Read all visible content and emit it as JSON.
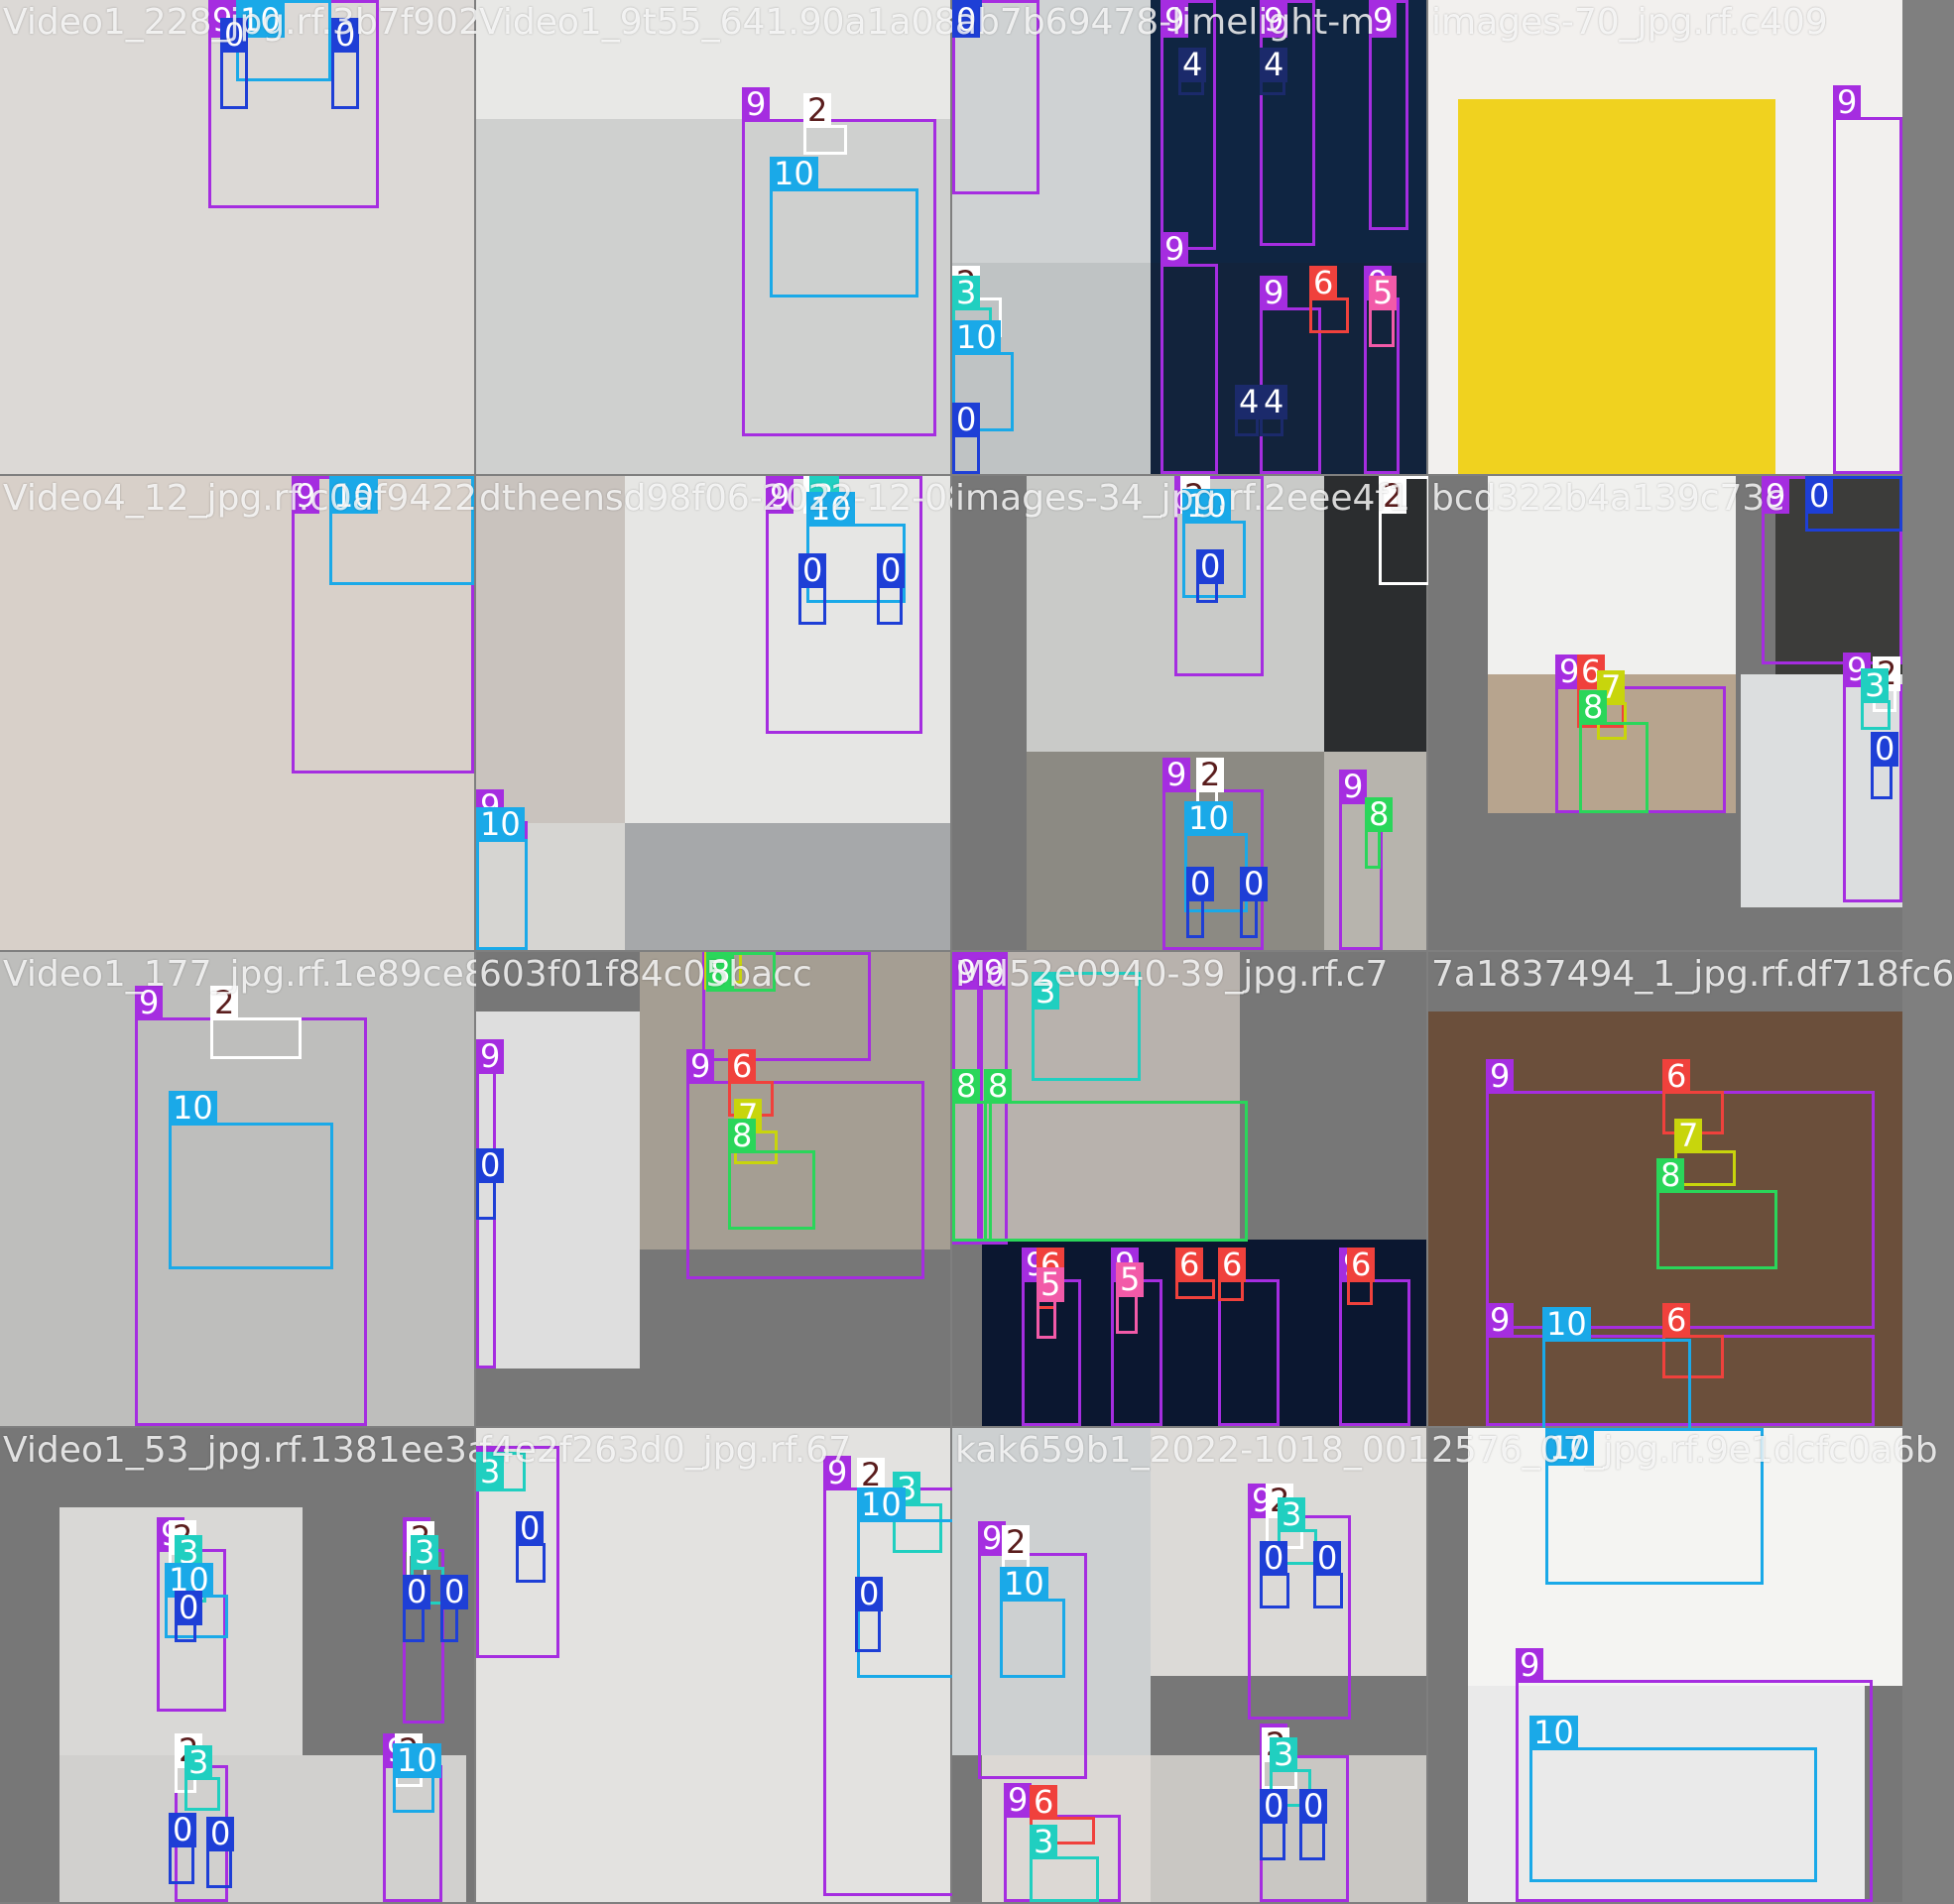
{
  "tiles": [
    {
      "filename": "Video1_228_jpg.rf.3b7f902d"
    },
    {
      "filename": "Video1_9t55_641.90a1a08"
    },
    {
      "filename": "ab7b69478-limelight-m"
    },
    {
      "filename": "images-70_jpg.rf.c409"
    },
    {
      "filename": "Video4_12_jpg.rf.c0af94222"
    },
    {
      "filename": "dtheensd98f06-2022-12-08"
    },
    {
      "filename": "images-34_jpg.rf.2eee4f1"
    },
    {
      "filename": "bcd322b4a139c73c"
    },
    {
      "filename": "Video1_177_jpg.rf.1e89ce8a"
    },
    {
      "filename": "603f01f84c05bacc"
    },
    {
      "filename": "Md52e0940-39_jpg.rf.c7"
    },
    {
      "filename": "7a1837494_1_jpg.rf.df718fc6"
    },
    {
      "filename": "Video1_53_jpg.rf.1381ee3a8"
    },
    {
      "filename": "f4e2f263d0_jpg.rf.67"
    },
    {
      "filename": "kak659b1_2022-1018_0014"
    },
    {
      "filename": "2576_07_jpg.rf.9e1dcfc0a6b"
    }
  ],
  "class_colors": {
    "0": "#1e3fd6",
    "2": "#ffffff",
    "3": "#20cfc0",
    "4": "#1b2a6b",
    "5": "#f25aa8",
    "6": "#f0413c",
    "7": "#c8d50c",
    "8": "#2ad65a",
    "9": "#a52de0",
    "10": "#1aa9e8"
  },
  "detections": [
    {
      "tile": 0,
      "cls": "9"
    },
    {
      "tile": 0,
      "cls": "10"
    },
    {
      "tile": 0,
      "cls": "0"
    },
    {
      "tile": 0,
      "cls": "0"
    },
    {
      "tile": 1,
      "cls": "9"
    },
    {
      "tile": 1,
      "cls": "2"
    },
    {
      "tile": 1,
      "cls": "10"
    },
    {
      "tile": 2,
      "cls": "9"
    },
    {
      "tile": 2,
      "cls": "0"
    },
    {
      "tile": 2,
      "cls": "2"
    },
    {
      "tile": 2,
      "cls": "3"
    },
    {
      "tile": 2,
      "cls": "10"
    },
    {
      "tile": 2,
      "cls": "0"
    },
    {
      "tile": 2,
      "cls": "9"
    },
    {
      "tile": 2,
      "cls": "4"
    },
    {
      "tile": 2,
      "cls": "9"
    },
    {
      "tile": 2,
      "cls": "4"
    },
    {
      "tile": 2,
      "cls": "9"
    },
    {
      "tile": 2,
      "cls": "9"
    },
    {
      "tile": 2,
      "cls": "9"
    },
    {
      "tile": 2,
      "cls": "6"
    },
    {
      "tile": 2,
      "cls": "9"
    },
    {
      "tile": 2,
      "cls": "5"
    },
    {
      "tile": 2,
      "cls": "4"
    },
    {
      "tile": 2,
      "cls": "4"
    },
    {
      "tile": 3,
      "cls": "9"
    },
    {
      "tile": 4,
      "cls": "9"
    },
    {
      "tile": 4,
      "cls": "10"
    },
    {
      "tile": 5,
      "cls": "9"
    },
    {
      "tile": 5,
      "cls": "2"
    },
    {
      "tile": 5,
      "cls": "3"
    },
    {
      "tile": 5,
      "cls": "10"
    },
    {
      "tile": 5,
      "cls": "0"
    },
    {
      "tile": 5,
      "cls": "0"
    },
    {
      "tile": 5,
      "cls": "9"
    },
    {
      "tile": 5,
      "cls": "10"
    },
    {
      "tile": 6,
      "cls": "9"
    },
    {
      "tile": 6,
      "cls": "2"
    },
    {
      "tile": 6,
      "cls": "10"
    },
    {
      "tile": 6,
      "cls": "0"
    },
    {
      "tile": 6,
      "cls": "2"
    },
    {
      "tile": 6,
      "cls": "9"
    },
    {
      "tile": 6,
      "cls": "2"
    },
    {
      "tile": 6,
      "cls": "10"
    },
    {
      "tile": 6,
      "cls": "0"
    },
    {
      "tile": 6,
      "cls": "0"
    },
    {
      "tile": 6,
      "cls": "9"
    },
    {
      "tile": 6,
      "cls": "8"
    },
    {
      "tile": 7,
      "cls": "9"
    },
    {
      "tile": 7,
      "cls": "0"
    },
    {
      "tile": 7,
      "cls": "9"
    },
    {
      "tile": 7,
      "cls": "6"
    },
    {
      "tile": 7,
      "cls": "7"
    },
    {
      "tile": 7,
      "cls": "8"
    },
    {
      "tile": 7,
      "cls": "9"
    },
    {
      "tile": 7,
      "cls": "2"
    },
    {
      "tile": 7,
      "cls": "3"
    },
    {
      "tile": 7,
      "cls": "0"
    },
    {
      "tile": 8,
      "cls": "9"
    },
    {
      "tile": 8,
      "cls": "2"
    },
    {
      "tile": 8,
      "cls": "10"
    },
    {
      "tile": 9,
      "cls": "9"
    },
    {
      "tile": 9,
      "cls": "0"
    },
    {
      "tile": 9,
      "cls": "9"
    },
    {
      "tile": 9,
      "cls": "7"
    },
    {
      "tile": 9,
      "cls": "8"
    },
    {
      "tile": 9,
      "cls": "9"
    },
    {
      "tile": 9,
      "cls": "6"
    },
    {
      "tile": 9,
      "cls": "7"
    },
    {
      "tile": 9,
      "cls": "8"
    },
    {
      "tile": 10,
      "cls": "9"
    },
    {
      "tile": 10,
      "cls": "9"
    },
    {
      "tile": 10,
      "cls": "3"
    },
    {
      "tile": 10,
      "cls": "8"
    },
    {
      "tile": 10,
      "cls": "8"
    },
    {
      "tile": 10,
      "cls": "9"
    },
    {
      "tile": 10,
      "cls": "6"
    },
    {
      "tile": 10,
      "cls": "5"
    },
    {
      "tile": 10,
      "cls": "9"
    },
    {
      "tile": 10,
      "cls": "5"
    },
    {
      "tile": 10,
      "cls": "6"
    },
    {
      "tile": 10,
      "cls": "9"
    },
    {
      "tile": 10,
      "cls": "6"
    },
    {
      "tile": 10,
      "cls": "9"
    },
    {
      "tile": 10,
      "cls": "6"
    },
    {
      "tile": 11,
      "cls": "9"
    },
    {
      "tile": 11,
      "cls": "6"
    },
    {
      "tile": 11,
      "cls": "7"
    },
    {
      "tile": 11,
      "cls": "8"
    },
    {
      "tile": 11,
      "cls": "9"
    },
    {
      "tile": 11,
      "cls": "6"
    },
    {
      "tile": 11,
      "cls": "10"
    },
    {
      "tile": 12,
      "cls": "9"
    },
    {
      "tile": 12,
      "cls": "2"
    },
    {
      "tile": 12,
      "cls": "3"
    },
    {
      "tile": 12,
      "cls": "10"
    },
    {
      "tile": 12,
      "cls": "0"
    },
    {
      "tile": 12,
      "cls": "9"
    },
    {
      "tile": 12,
      "cls": "2"
    },
    {
      "tile": 12,
      "cls": "3"
    },
    {
      "tile": 12,
      "cls": "0"
    },
    {
      "tile": 12,
      "cls": "0"
    },
    {
      "tile": 12,
      "cls": "9"
    },
    {
      "tile": 12,
      "cls": "2"
    },
    {
      "tile": 12,
      "cls": "3"
    },
    {
      "tile": 12,
      "cls": "0"
    },
    {
      "tile": 12,
      "cls": "0"
    },
    {
      "tile": 12,
      "cls": "9"
    },
    {
      "tile": 12,
      "cls": "2"
    },
    {
      "tile": 12,
      "cls": "10"
    },
    {
      "tile": 13,
      "cls": "9"
    },
    {
      "tile": 13,
      "cls": "3"
    },
    {
      "tile": 13,
      "cls": "0"
    },
    {
      "tile": 13,
      "cls": "9"
    },
    {
      "tile": 13,
      "cls": "2"
    },
    {
      "tile": 13,
      "cls": "3"
    },
    {
      "tile": 13,
      "cls": "10"
    },
    {
      "tile": 13,
      "cls": "0"
    },
    {
      "tile": 14,
      "cls": "9"
    },
    {
      "tile": 14,
      "cls": "2"
    },
    {
      "tile": 14,
      "cls": "10"
    },
    {
      "tile": 14,
      "cls": "9"
    },
    {
      "tile": 14,
      "cls": "2"
    },
    {
      "tile": 14,
      "cls": "3"
    },
    {
      "tile": 14,
      "cls": "0"
    },
    {
      "tile": 14,
      "cls": "0"
    },
    {
      "tile": 14,
      "cls": "9"
    },
    {
      "tile": 14,
      "cls": "6"
    },
    {
      "tile": 14,
      "cls": "3"
    },
    {
      "tile": 14,
      "cls": "9"
    },
    {
      "tile": 14,
      "cls": "2"
    },
    {
      "tile": 14,
      "cls": "3"
    },
    {
      "tile": 14,
      "cls": "0"
    },
    {
      "tile": 14,
      "cls": "0"
    },
    {
      "tile": 15,
      "cls": "10"
    },
    {
      "tile": 15,
      "cls": "9"
    },
    {
      "tile": 15,
      "cls": "10"
    }
  ]
}
